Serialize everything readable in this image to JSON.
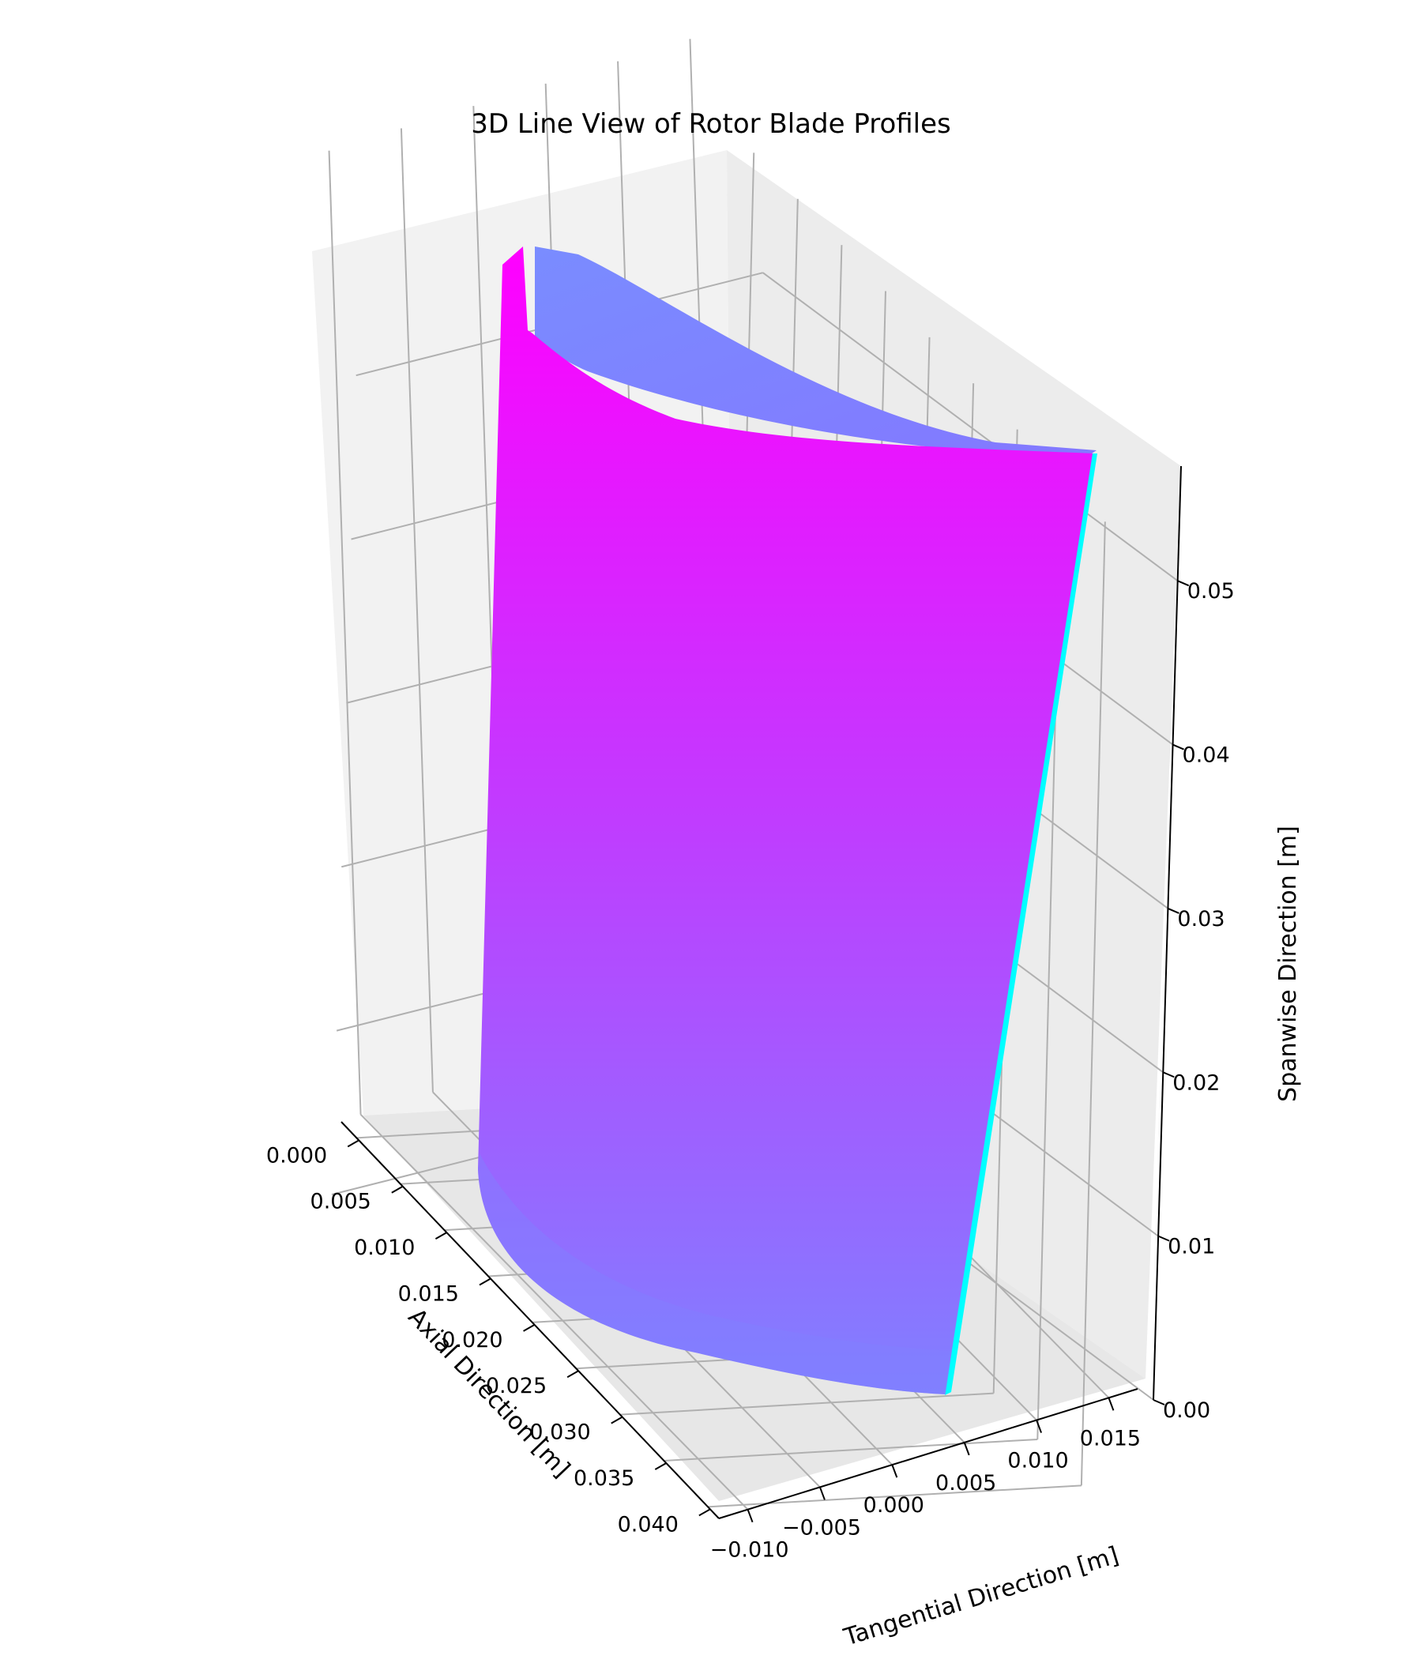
{
  "chart_data": {
    "type": "surface",
    "title": "3D Line View of Rotor Blade Profiles",
    "xlabel": "Axial Direction [m]",
    "ylabel": "Tangential Direction [m]",
    "zlabel": "Spanwise Direction [m]",
    "x_ticks": [
      "0.000",
      "0.005",
      "0.010",
      "0.015",
      "0.020",
      "0.025",
      "0.030",
      "0.035",
      "0.040"
    ],
    "y_ticks": [
      "−0.010",
      "−0.005",
      "0.000",
      "0.005",
      "0.010",
      "0.015"
    ],
    "z_ticks": [
      "0.00",
      "0.01",
      "0.02",
      "0.03",
      "0.04",
      "0.05"
    ],
    "xlim": [
      -0.002,
      0.041
    ],
    "ylim": [
      -0.012,
      0.017
    ],
    "zlim": [
      0,
      0.057
    ],
    "grid": true,
    "colormap": "cool",
    "colors": {
      "pane_back": "#f2f2f2",
      "pane_left": "#f6f6f6",
      "pane_floor": "#ececec",
      "blade_top": "#ff00ff",
      "blade_bottom": "#8080ff",
      "suction_side": "#7d8cff",
      "edge": "#00ffff"
    }
  }
}
